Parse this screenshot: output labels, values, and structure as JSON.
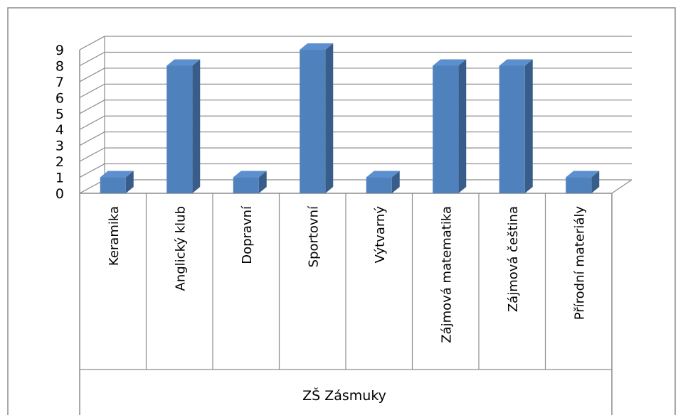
{
  "chart_data": {
    "type": "bar",
    "style": "3d-column",
    "title": "",
    "xlabel": "",
    "ylabel": "",
    "group_label": "ZŠ Zásmuky",
    "categories": [
      "Keramika",
      "Anglický klub",
      "Dopravní",
      "Sportovní",
      "Výtvarný",
      "Zájmová matematika",
      "Zájmová čeština",
      "Přírodní materiály"
    ],
    "values": [
      1,
      8,
      1,
      9,
      1,
      8,
      8,
      1
    ],
    "ylim": [
      0,
      9
    ],
    "yticks": [
      "0",
      "1",
      "2",
      "3",
      "4",
      "5",
      "6",
      "7",
      "8",
      "9"
    ],
    "grid": true,
    "legend": "none",
    "colors": {
      "bar_front": "#4f81bd",
      "bar_side": "#385d8a",
      "bar_top": "#5b8fd0",
      "grid": "#8c8c8c",
      "border": "#8c8c8c"
    }
  }
}
